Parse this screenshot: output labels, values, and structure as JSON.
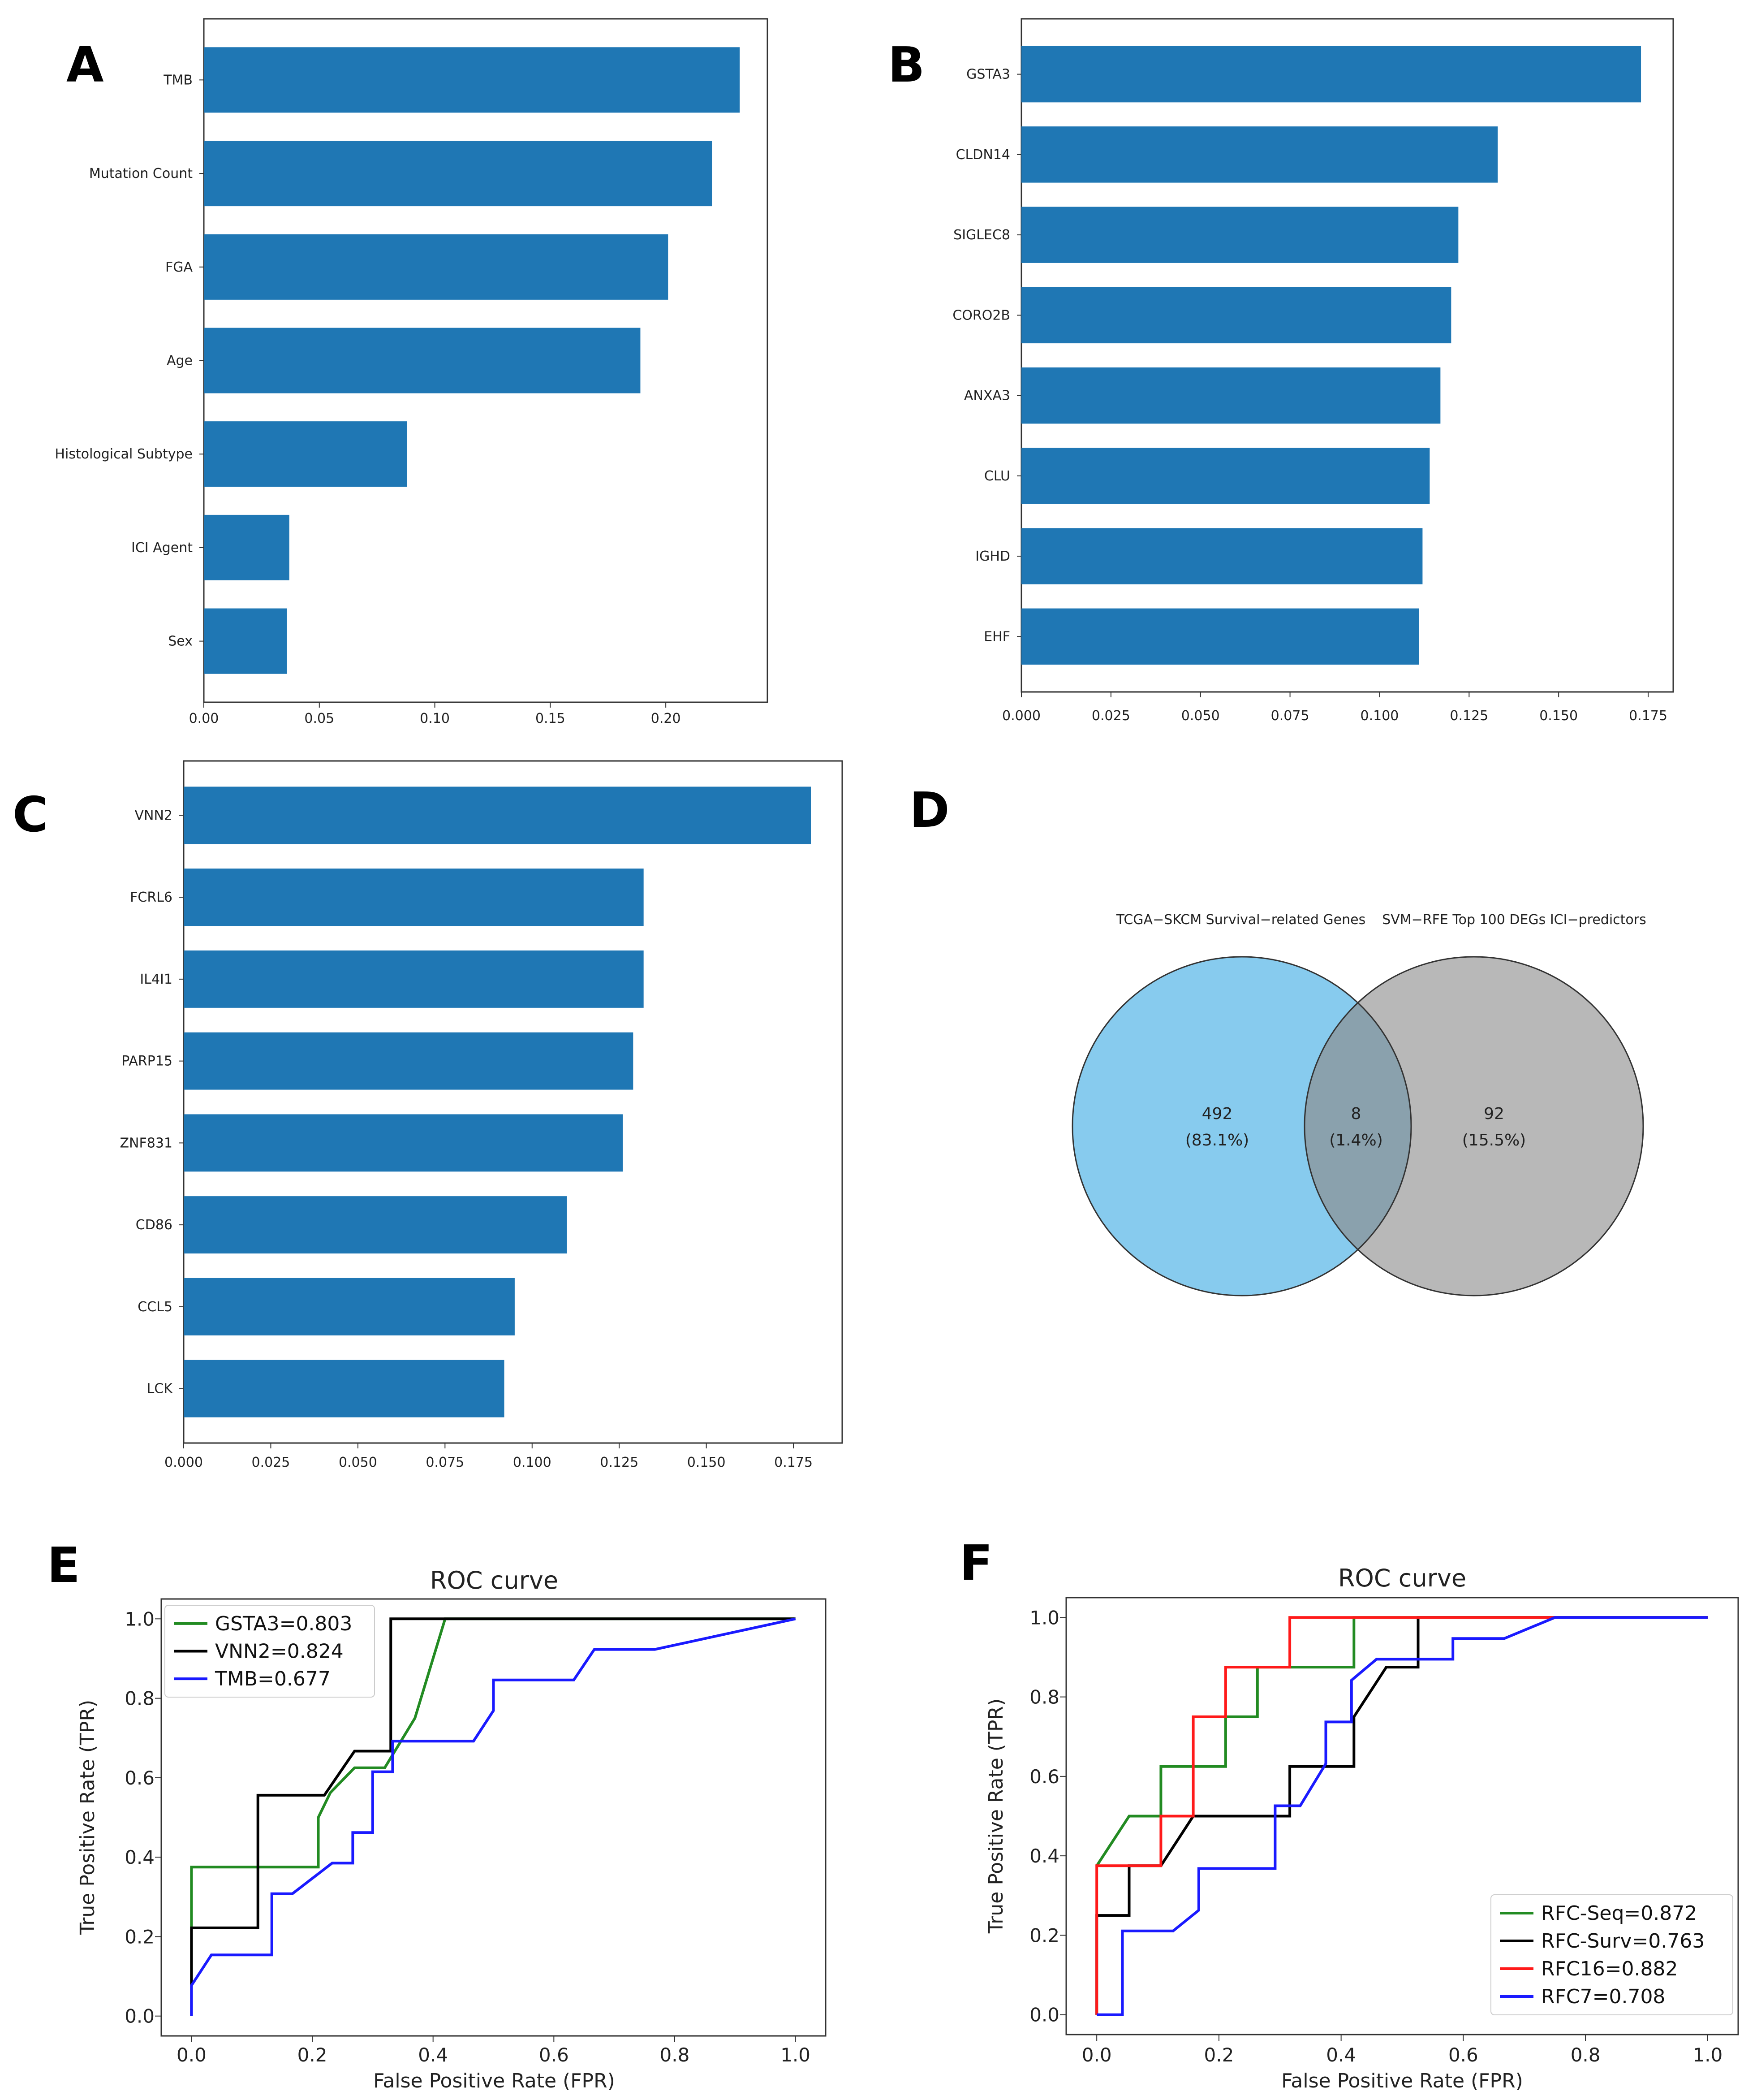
{
  "panel_labels": {
    "A": "A",
    "B": "B",
    "C": "C",
    "D": "D",
    "E": "E",
    "F": "F"
  },
  "colors": {
    "bar": "#1f77b4",
    "venn_left": "#87cbee",
    "venn_right": "#b8b8b8",
    "venn_overlap": "#8aa1ad",
    "gsta3": "#228b22",
    "vnn2": "#000000",
    "tmb": "#1a1aff",
    "rfc_seq": "#228b22",
    "rfc_surv": "#000000",
    "rfc16": "#ff1a1a",
    "rfc7": "#1a1aff"
  },
  "chart_data": [
    {
      "id": "A",
      "type": "bar",
      "orientation": "horizontal",
      "categories": [
        "TMB",
        "Mutation Count",
        "FGA",
        "Age",
        "Histological Subtype",
        "ICI Agent",
        "Sex"
      ],
      "values": [
        0.232,
        0.22,
        0.201,
        0.189,
        0.088,
        0.037,
        0.036
      ],
      "xlim": [
        0,
        0.244
      ],
      "xticks": [
        0.0,
        0.05,
        0.1,
        0.15,
        0.2
      ],
      "tick_labels": [
        "0.00",
        "0.05",
        "0.10",
        "0.15",
        "0.20"
      ]
    },
    {
      "id": "B",
      "type": "bar",
      "orientation": "horizontal",
      "categories": [
        "GSTA3",
        "CLDN14",
        "SIGLEC8",
        "CORO2B",
        "ANXA3",
        "CLU",
        "IGHD",
        "EHF"
      ],
      "values": [
        0.173,
        0.133,
        0.122,
        0.12,
        0.117,
        0.114,
        0.112,
        0.111
      ],
      "xlim": [
        0,
        0.182
      ],
      "xticks": [
        0.0,
        0.025,
        0.05,
        0.075,
        0.1,
        0.125,
        0.15,
        0.175
      ],
      "tick_labels": [
        "0.000",
        "0.025",
        "0.050",
        "0.075",
        "0.100",
        "0.125",
        "0.150",
        "0.175"
      ]
    },
    {
      "id": "C",
      "type": "bar",
      "orientation": "horizontal",
      "categories": [
        "VNN2",
        "FCRL6",
        "IL4I1",
        "PARP15",
        "ZNF831",
        "CD86",
        "CCL5",
        "LCK"
      ],
      "values": [
        0.18,
        0.132,
        0.132,
        0.129,
        0.126,
        0.11,
        0.095,
        0.092
      ],
      "xlim": [
        0,
        0.189
      ],
      "xticks": [
        0.0,
        0.025,
        0.05,
        0.075,
        0.1,
        0.125,
        0.15,
        0.175
      ],
      "tick_labels": [
        "0.000",
        "0.025",
        "0.050",
        "0.075",
        "0.100",
        "0.125",
        "0.150",
        "0.175"
      ]
    },
    {
      "id": "D",
      "type": "venn",
      "sets": [
        {
          "label": "TCGA−SKCM Survival−related Genes",
          "only_count": "492",
          "only_pct": "(83.1%)"
        },
        {
          "label": "SVM−RFE Top 100 DEGs ICI−predictors",
          "only_count": "92",
          "only_pct": "(15.5%)"
        }
      ],
      "intersection": {
        "count": "8",
        "pct": "(1.4%)"
      }
    },
    {
      "id": "E",
      "type": "line",
      "title": "ROC curve",
      "xlabel": "False Positive Rate (FPR)",
      "ylabel": "True Positive Rate (TPR)",
      "xlim": [
        -0.05,
        1.05
      ],
      "ylim": [
        -0.05,
        1.05
      ],
      "ticks": [
        0.0,
        0.2,
        0.4,
        0.6,
        0.8,
        1.0
      ],
      "tick_labels": [
        "0.0",
        "0.2",
        "0.4",
        "0.6",
        "0.8",
        "1.0"
      ],
      "legend": "top-left",
      "series": [
        {
          "name": "GSTA3=0.803",
          "color_key": "gsta3",
          "x": [
            0,
            0,
            0.21,
            0.21,
            0.23,
            0.27,
            0.32,
            0.37,
            0.42,
            1.0
          ],
          "y": [
            0,
            0.375,
            0.375,
            0.5,
            0.5625,
            0.625,
            0.625,
            0.75,
            1.0,
            1.0
          ]
        },
        {
          "name": "VNN2=0.824",
          "color_key": "vnn2",
          "x": [
            0,
            0,
            0.11,
            0.11,
            0.22,
            0.22,
            0.27,
            0.27,
            0.33,
            0.33,
            1.0
          ],
          "y": [
            0,
            0.222,
            0.222,
            0.556,
            0.556,
            0.556,
            0.667,
            0.667,
            0.667,
            1.0,
            1.0
          ]
        },
        {
          "name": "TMB=0.677",
          "color_key": "tmb",
          "x": [
            0,
            0,
            0.033,
            0.133,
            0.133,
            0.167,
            0.233,
            0.267,
            0.267,
            0.3,
            0.3,
            0.333,
            0.333,
            0.467,
            0.5,
            0.5,
            0.633,
            0.667,
            0.767,
            1.0
          ],
          "y": [
            0,
            0.077,
            0.154,
            0.154,
            0.308,
            0.308,
            0.385,
            0.385,
            0.462,
            0.462,
            0.615,
            0.615,
            0.692,
            0.692,
            0.769,
            0.846,
            0.846,
            0.923,
            0.923,
            1.0
          ]
        }
      ]
    },
    {
      "id": "F",
      "type": "line",
      "title": "ROC curve",
      "xlabel": "False Positive Rate (FPR)",
      "ylabel": "True Positive Rate (TPR)",
      "xlim": [
        -0.05,
        1.05
      ],
      "ylim": [
        -0.05,
        1.05
      ],
      "ticks": [
        0.0,
        0.2,
        0.4,
        0.6,
        0.8,
        1.0
      ],
      "tick_labels": [
        "0.0",
        "0.2",
        "0.4",
        "0.6",
        "0.8",
        "1.0"
      ],
      "legend": "bottom-right",
      "series": [
        {
          "name": "RFC-Seq=0.872",
          "color_key": "rfc_seq",
          "x": [
            0,
            0.053,
            0.105,
            0.105,
            0.158,
            0.158,
            0.211,
            0.211,
            0.263,
            0.263,
            0.421,
            0.421,
            1.0
          ],
          "y": [
            0.375,
            0.5,
            0.5,
            0.625,
            0.625,
            0.625,
            0.625,
            0.75,
            0.75,
            0.875,
            0.875,
            1.0,
            1.0
          ]
        },
        {
          "name": "RFC-Surv=0.763",
          "color_key": "rfc_surv",
          "x": [
            0,
            0,
            0.053,
            0.053,
            0.105,
            0.158,
            0.316,
            0.316,
            0.421,
            0.421,
            0.474,
            0.526,
            0.526,
            1.0
          ],
          "y": [
            0,
            0.25,
            0.25,
            0.375,
            0.375,
            0.5,
            0.5,
            0.625,
            0.625,
            0.75,
            0.875,
            0.875,
            1.0,
            1.0
          ]
        },
        {
          "name": "RFC16=0.882",
          "color_key": "rfc16",
          "x": [
            0,
            0,
            0.105,
            0.105,
            0.158,
            0.158,
            0.211,
            0.211,
            0.316,
            0.316,
            1.0
          ],
          "y": [
            0,
            0.375,
            0.375,
            0.5,
            0.5,
            0.75,
            0.75,
            0.875,
            0.875,
            1.0,
            1.0
          ]
        },
        {
          "name": "RFC7=0.708",
          "color_key": "rfc7",
          "x": [
            0,
            0.042,
            0.042,
            0.125,
            0.167,
            0.167,
            0.292,
            0.292,
            0.333,
            0.375,
            0.375,
            0.417,
            0.417,
            0.458,
            0.542,
            0.583,
            0.583,
            0.667,
            0.75,
            1.0
          ],
          "y": [
            0,
            0,
            0.211,
            0.211,
            0.263,
            0.368,
            0.368,
            0.526,
            0.526,
            0.632,
            0.737,
            0.737,
            0.842,
            0.895,
            0.895,
            0.895,
            0.947,
            0.947,
            1.0,
            1.0
          ]
        }
      ]
    }
  ]
}
